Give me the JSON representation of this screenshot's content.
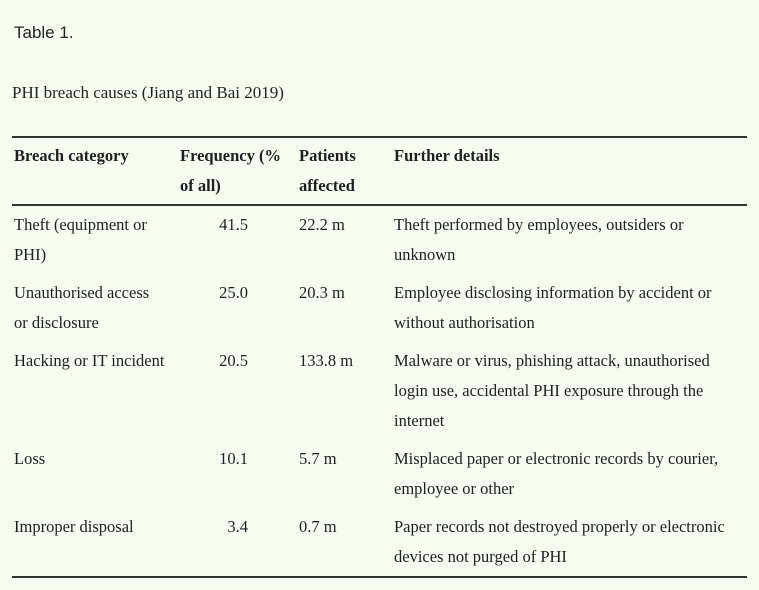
{
  "document": {
    "table_label": "Table 1.",
    "caption": "PHI breach causes (Jiang and Bai 2019)"
  },
  "table": {
    "headers": [
      "Breach category",
      "Frequency (% of all)",
      "Patients affected",
      "Further details"
    ],
    "rows": [
      {
        "category": "Theft (equipment or PHI)",
        "frequency": "41.5",
        "patients_affected": "22.2 m",
        "details": "Theft performed by employees, outsiders or unknown"
      },
      {
        "category": "Unauthorised access or disclosure",
        "frequency": "25.0",
        "patients_affected": "20.3 m",
        "details": "Employee disclosing information by accident or without authorisation"
      },
      {
        "category": "Hacking or IT incident",
        "frequency": "20.5",
        "patients_affected": "133.8 m",
        "details": "Malware or virus, phishing attack, unauthorised login use, accidental PHI exposure through the internet"
      },
      {
        "category": "Loss",
        "frequency": "10.1",
        "patients_affected": "5.7 m",
        "details": "Misplaced paper or electronic records by courier, employee or other"
      },
      {
        "category": "Improper disposal",
        "frequency": "3.4",
        "patients_affected": "0.7 m",
        "details": "Paper records not destroyed properly or electronic devices not purged of PHI"
      }
    ]
  },
  "colors": {
    "background": "#f6fcef",
    "text": "#1f1f1f",
    "rule": "#333330"
  }
}
